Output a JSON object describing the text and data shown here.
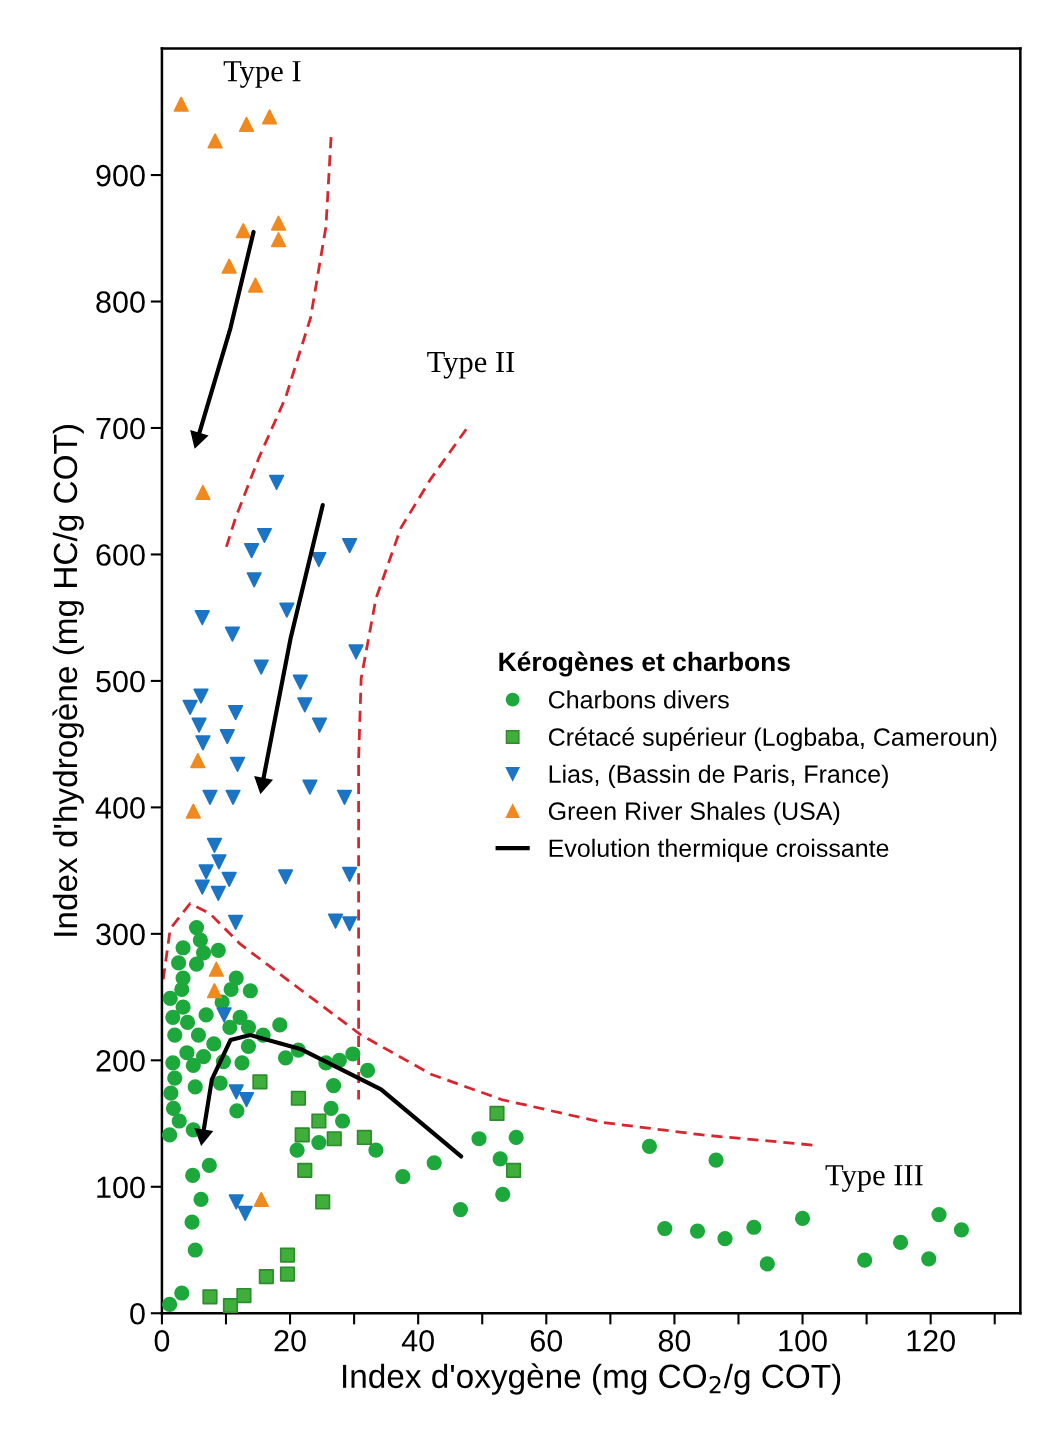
{
  "chart_data": {
    "type": "scatter",
    "xlabel": "Index d'oxygène (mg CO$_{2}$/g COT)",
    "ylabel": "Index d'hydrogène (mg HC/g COT)",
    "legend_title": "Kérogènes et charbons",
    "legend": "center right",
    "xlim": [
      0,
      134
    ],
    "ylim": [
      0,
      1000
    ],
    "xticks": [
      0,
      {
        "value": 10,
        "label": null
      },
      20,
      {
        "value": 30,
        "label": null
      },
      40,
      {
        "value": 50,
        "label": null
      },
      60,
      {
        "value": 70,
        "label": null
      },
      80,
      {
        "value": 90,
        "label": null
      },
      100,
      {
        "value": 110,
        "label": null
      },
      120,
      {
        "value": 130,
        "label": null
      }
    ],
    "yticks": [
      0,
      100,
      200,
      300,
      400,
      500,
      600,
      700,
      800,
      900
    ],
    "grid": false,
    "annotations": [
      "Type I",
      "Type II",
      "Type III"
    ],
    "series": [
      {
        "name": "Charbons divers",
        "marker": "circle",
        "color": "#1da83c",
        "x": [
          5.4,
          6.0,
          3.3,
          6.5,
          8.8,
          5.4,
          2.6,
          3.3,
          11.6,
          3.1,
          10.8,
          13.8,
          1.3,
          3.3,
          9.4,
          6.9,
          1.7,
          4.0,
          12.2,
          10.6,
          13.5,
          18.4,
          2.0,
          5.7,
          15.8,
          8.1,
          3.9,
          6.5,
          1.7,
          4.9,
          9.6,
          12.5,
          19.3,
          21.3,
          13.5,
          25.6,
          27.7,
          29.8,
          32.1,
          2.0,
          5.2,
          9.1,
          26.8,
          1.4,
          1.8,
          2.7,
          11.7,
          26.4,
          28.2,
          4.9,
          1.2,
          24.5,
          21.1,
          33.4,
          7.4,
          4.8,
          6.1,
          4.7,
          5.2,
          3.1,
          1.2,
          37.6,
          42.5,
          46.6,
          49.5,
          55.3,
          52.8,
          53.2,
          76.1,
          86.5,
          78.5,
          83.6,
          87.9,
          92.4,
          94.5,
          100.0,
          109.7,
          115.3,
          119.7,
          121.3,
          124.8
        ],
        "values": [
          305,
          295,
          289,
          285,
          287,
          276,
          277,
          265,
          265,
          256,
          256,
          255,
          249,
          242,
          246,
          236,
          234,
          230,
          234,
          226,
          226,
          228,
          220,
          220,
          220,
          213,
          206,
          203,
          198,
          196,
          199,
          198,
          202,
          208,
          211,
          198,
          200,
          205,
          192,
          186,
          179,
          182,
          180,
          174,
          162,
          152,
          160,
          162,
          152,
          145,
          141,
          135,
          129,
          129,
          117,
          109,
          90,
          72,
          50,
          16,
          7,
          108,
          119,
          82,
          138,
          139,
          122,
          94,
          132,
          121,
          67,
          65,
          59,
          68,
          39,
          75,
          42,
          56,
          43,
          78,
          66
        ]
      },
      {
        "name": "Crétacé supérieur (Logbaba, Cameroun)",
        "marker": "square",
        "color": "#3fae3a",
        "x": [
          15.3,
          21.3,
          24.5,
          21.9,
          26.9,
          31.6,
          22.3,
          25.1,
          19.6,
          16.3,
          19.6,
          7.5,
          12.8,
          10.7,
          52.3,
          54.9
        ],
        "values": [
          183,
          170,
          152,
          141,
          138,
          139,
          113,
          88,
          46,
          29,
          31,
          13,
          14,
          6,
          158,
          113
        ]
      },
      {
        "name": "Lias, (Bassin de Paris, France)",
        "marker": "triangle_down",
        "color": "#1b74c4",
        "x": [
          17.9,
          16.0,
          14.0,
          24.5,
          29.3,
          14.4,
          19.5,
          6.3,
          11.0,
          30.3,
          15.5,
          21.6,
          6.1,
          4.4,
          11.5,
          22.3,
          5.8,
          24.6,
          10.2,
          6.4,
          11.8,
          23.1,
          7.5,
          11.1,
          28.5,
          8.2,
          8.9,
          6.9,
          10.5,
          19.3,
          29.3,
          6.3,
          8.8,
          11.5,
          27.1,
          29.3,
          9.7,
          11.6,
          13.2,
          11.6,
          13.0
        ],
        "values": [
          657,
          615,
          603,
          596,
          607,
          580,
          556,
          550,
          537,
          523,
          511,
          499,
          488,
          479,
          475,
          481,
          465,
          465,
          456,
          451,
          434,
          416,
          408,
          408,
          408,
          370,
          357,
          349,
          343,
          345,
          347,
          337,
          332,
          309,
          310,
          308,
          236,
          175,
          169,
          88,
          79
        ]
      },
      {
        "name": "Green River Shales (USA)",
        "marker": "triangle",
        "color": "#f0891e",
        "x": [
          3.0,
          8.3,
          13.2,
          16.8,
          12.7,
          18.2,
          18.2,
          10.5,
          14.6,
          6.4,
          5.6,
          4.9,
          8.5,
          8.2,
          15.5
        ],
        "values": [
          956,
          927,
          940,
          946,
          856,
          862,
          849,
          828,
          813,
          649,
          437,
          397,
          272,
          255,
          90
        ]
      },
      {
        "name": "Evolution thermique croissante",
        "type": "line",
        "line_style": "solid",
        "color": "#000000",
        "x": [
          14.3,
          10.7,
          5.6
        ],
        "values": [
          855,
          779,
          692
        ]
      },
      {
        "type": "line",
        "line_style": "solid",
        "color": "#000000",
        "x": [
          25.1,
          20.1,
          15.7
        ],
        "values": [
          639,
          534,
          419
        ]
      },
      {
        "type": "line",
        "line_style": "solid",
        "color": "#000000",
        "x": [
          46.7,
          34.2,
          21.6,
          13.8,
          10.7,
          7.8,
          6.4
        ],
        "values": [
          124,
          177,
          209,
          220,
          216,
          185,
          141
        ]
      },
      {
        "type": "line",
        "line_style": "dashed",
        "color": "#d9262e",
        "x": [
          26.4,
          25.6,
          23.2,
          19.3,
          15.1,
          11.5,
          10.0
        ],
        "values": [
          930,
          859,
          787,
          724,
          676,
          629,
          605
        ]
      },
      {
        "type": "line",
        "line_style": "dashed",
        "color": "#d9262e",
        "x": [
          47.5,
          42.0,
          37.3,
          33.4,
          31.1,
          30.7,
          30.7
        ],
        "values": [
          699,
          660,
          621,
          565,
          502,
          438,
          169
        ]
      },
      {
        "type": "line",
        "line_style": "dashed",
        "color": "#d9262e",
        "x": [
          0.2,
          1.3,
          4.4,
          7.5,
          12.2,
          21.6,
          31.1,
          42.0,
          53.0,
          68.7,
          84.4,
          101.6
        ],
        "values": [
          264,
          304,
          324,
          316,
          292,
          256,
          220,
          189,
          169,
          151,
          141,
          133
        ]
      }
    ]
  }
}
